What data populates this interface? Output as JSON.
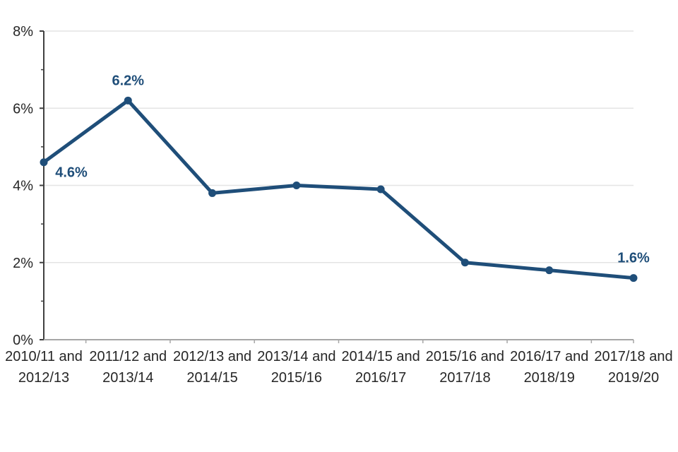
{
  "chart_data": {
    "type": "line",
    "categories": [
      "2010/11 and 2012/13",
      "2011/12 and 2013/14",
      "2012/13 and 2014/15",
      "2013/14 and 2015/16",
      "2014/15 and 2016/17",
      "2015/16 and 2017/18",
      "2016/17 and 2018/19",
      "2017/18 and 2019/20"
    ],
    "series": [
      {
        "name": "percentage",
        "values": [
          4.6,
          6.2,
          3.8,
          4.0,
          3.9,
          2.0,
          1.8,
          1.6
        ]
      }
    ],
    "ylim": [
      0,
      8
    ],
    "yticks": [
      {
        "value": 0,
        "label": "0%"
      },
      {
        "value": 2,
        "label": "2%"
      },
      {
        "value": 4,
        "label": "4%"
      },
      {
        "value": 6,
        "label": "6%"
      },
      {
        "value": 8,
        "label": "8%"
      }
    ],
    "minor_ytick_step": 1,
    "grid": true,
    "legend_position": "none",
    "data_labels": [
      {
        "index": 0,
        "text": "4.6%",
        "position": "below-right"
      },
      {
        "index": 1,
        "text": "6.2%",
        "position": "above"
      },
      {
        "index": 7,
        "text": "1.6%",
        "position": "above"
      }
    ],
    "colors": {
      "line": "#1F4E79",
      "marker": "#1F4E79",
      "data_label": "#1F4E79",
      "gridline": "#E4E4E4",
      "y_axis": "#404040",
      "x_axis": "#A6A6A6",
      "tick_label": "#262626"
    }
  }
}
